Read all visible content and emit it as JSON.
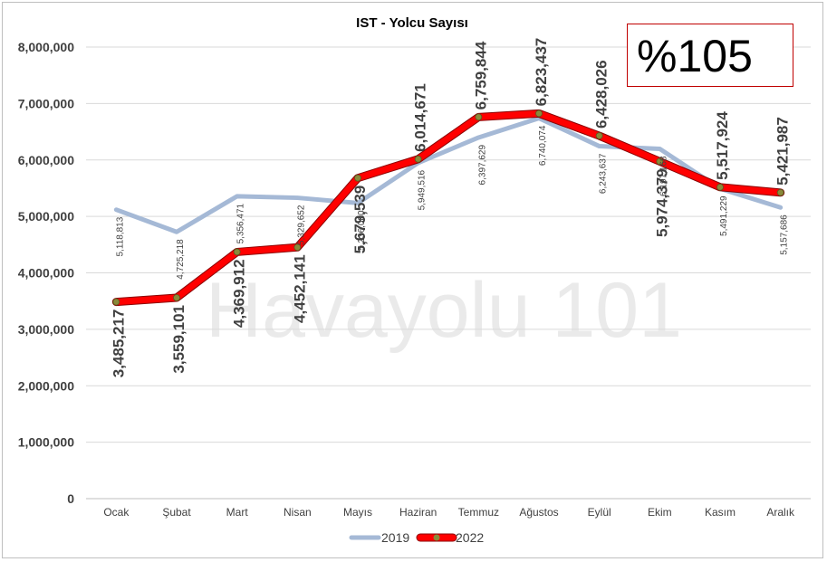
{
  "chart_data": {
    "type": "line",
    "title": "IST - Yolcu Sayısı",
    "categories": [
      "Ocak",
      "Şubat",
      "Mart",
      "Nisan",
      "Mayıs",
      "Haziran",
      "Temmuz",
      "Ağustos",
      "Eylül",
      "Ekim",
      "Kasım",
      "Aralık"
    ],
    "series": [
      {
        "name": "2019",
        "color": "#a5b9d6",
        "values": [
          5118813,
          4725218,
          5356471,
          5329652,
          5236080,
          5949516,
          6397629,
          6740074,
          6243637,
          6197168,
          5491229,
          5157686
        ],
        "labels": [
          "5,118,813",
          "4,725,218",
          "5,356,471",
          "5,329,652",
          "5,236,080",
          "5,949,516",
          "6,397,629",
          "6,740,074",
          "6,243,637",
          "6,197,168",
          "5,491,229",
          "5,157,686"
        ]
      },
      {
        "name": "2022",
        "color": "#ff0000",
        "values": [
          3485217,
          3559101,
          4369912,
          4452141,
          5679539,
          6014671,
          6759844,
          6823437,
          6428026,
          5974379,
          5517924,
          5421987
        ],
        "labels": [
          "3,485,217",
          "3,559,101",
          "4,369,912",
          "4,452,141",
          "5,679,539",
          "6,014,671",
          "6,759,844",
          "6,823,437",
          "6,428,026",
          "5,974,379",
          "5,517,924",
          "5,421,987"
        ]
      }
    ],
    "ylim": [
      0,
      8000000
    ],
    "yticks": [
      "0",
      "1,000,000",
      "2,000,000",
      "3,000,000",
      "4,000,000",
      "5,000,000",
      "6,000,000",
      "7,000,000",
      "8,000,000"
    ],
    "grid": true,
    "legend": "bottom",
    "annotation": "%105",
    "watermark": "Havayolu 101"
  }
}
